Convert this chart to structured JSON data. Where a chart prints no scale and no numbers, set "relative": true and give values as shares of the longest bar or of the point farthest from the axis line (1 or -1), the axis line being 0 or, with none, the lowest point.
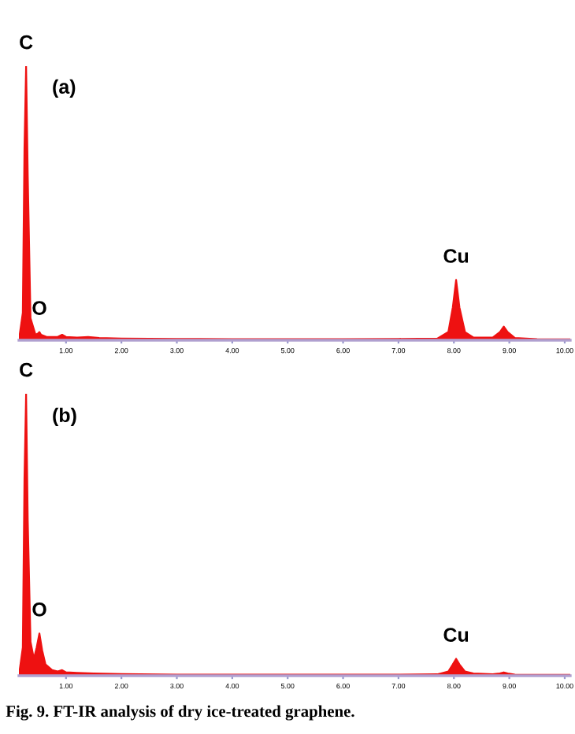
{
  "chart_data": [
    {
      "type": "area",
      "relative": true,
      "x": [
        0.15,
        0.22,
        0.25,
        0.28,
        0.31,
        0.36,
        0.45,
        0.5,
        0.52,
        0.55,
        0.65,
        0.85,
        0.93,
        1.0,
        1.2,
        1.4,
        1.6,
        2.0,
        3.0,
        4.0,
        5.0,
        6.0,
        7.0,
        7.7,
        7.9,
        7.98,
        8.04,
        8.1,
        8.2,
        8.35,
        8.7,
        8.83,
        8.9,
        8.97,
        9.1,
        9.5,
        10.1
      ],
      "series": [
        {
          "color": "#ee1111",
          "values": [
            0,
            0.1,
            0.7,
            1,
            0.6,
            0.08,
            0.02,
            0.025,
            0.03,
            0.02,
            0.012,
            0.012,
            0.02,
            0.012,
            0.01,
            0.012,
            0.008,
            0.006,
            0.005,
            0.004,
            0.004,
            0.004,
            0.005,
            0.006,
            0.03,
            0.12,
            0.22,
            0.12,
            0.03,
            0.01,
            0.01,
            0.03,
            0.05,
            0.03,
            0.008,
            0.004,
            0.003
          ]
        }
      ],
      "xlim": [
        0.15,
        10.1
      ],
      "xticks": [
        {
          "value": 1,
          "label": "1.00"
        },
        {
          "value": 2,
          "label": "2.00"
        },
        {
          "value": 3,
          "label": "3.00"
        },
        {
          "value": 4,
          "label": "4.00"
        },
        {
          "value": 5,
          "label": "5.00"
        },
        {
          "value": 6,
          "label": "6.00"
        },
        {
          "value": 7,
          "label": "7.00"
        },
        {
          "value": 8,
          "label": "8.00"
        },
        {
          "value": 9,
          "label": "9.00"
        },
        {
          "value": 10,
          "label": "10.00"
        }
      ],
      "tick_labels": "x",
      "annotations": [
        "(a)",
        {
          "text": "C",
          "x": 0.28,
          "y": 1
        },
        {
          "text": "O",
          "x": 0.52,
          "y": 0.03
        },
        {
          "text": "Cu",
          "x": 8.04,
          "y": 0.22
        }
      ]
    },
    {
      "type": "area",
      "relative": true,
      "x": [
        0.15,
        0.22,
        0.25,
        0.28,
        0.31,
        0.36,
        0.42,
        0.47,
        0.52,
        0.57,
        0.63,
        0.75,
        0.85,
        0.93,
        1.0,
        1.2,
        1.5,
        2.0,
        3.0,
        4.0,
        5.0,
        6.0,
        7.0,
        7.7,
        7.9,
        7.98,
        8.04,
        8.1,
        8.2,
        8.35,
        8.7,
        8.83,
        8.9,
        8.97,
        9.1,
        9.5,
        10.1
      ],
      "series": [
        {
          "color": "#ee1111",
          "values": [
            0,
            0.1,
            0.7,
            1,
            0.55,
            0.12,
            0.06,
            0.1,
            0.15,
            0.09,
            0.04,
            0.02,
            0.015,
            0.02,
            0.012,
            0.01,
            0.008,
            0.006,
            0.004,
            0.004,
            0.004,
            0.004,
            0.004,
            0.005,
            0.015,
            0.04,
            0.06,
            0.04,
            0.015,
            0.008,
            0.005,
            0.008,
            0.012,
            0.008,
            0.004,
            0.003,
            0.003
          ]
        }
      ],
      "xlim": [
        0.15,
        10.1
      ],
      "xticks": [
        {
          "value": 1,
          "label": "1.00"
        },
        {
          "value": 2,
          "label": "2.00"
        },
        {
          "value": 3,
          "label": "3.00"
        },
        {
          "value": 4,
          "label": "4.00"
        },
        {
          "value": 5,
          "label": "5.00"
        },
        {
          "value": 6,
          "label": "6.00"
        },
        {
          "value": 7,
          "label": "7.00"
        },
        {
          "value": 8,
          "label": "8.00"
        },
        {
          "value": 9,
          "label": "9.00"
        },
        {
          "value": 10,
          "label": "10.00"
        }
      ],
      "tick_labels": "x",
      "annotations": [
        "(b)",
        {
          "text": "C",
          "x": 0.28,
          "y": 1
        },
        {
          "text": "O",
          "x": 0.52,
          "y": 0.15
        },
        {
          "text": "Cu",
          "x": 8.04,
          "y": 0.06
        },
        "Fig. 9. FT-IR analysis of dry ice-treated graphene."
      ]
    }
  ]
}
